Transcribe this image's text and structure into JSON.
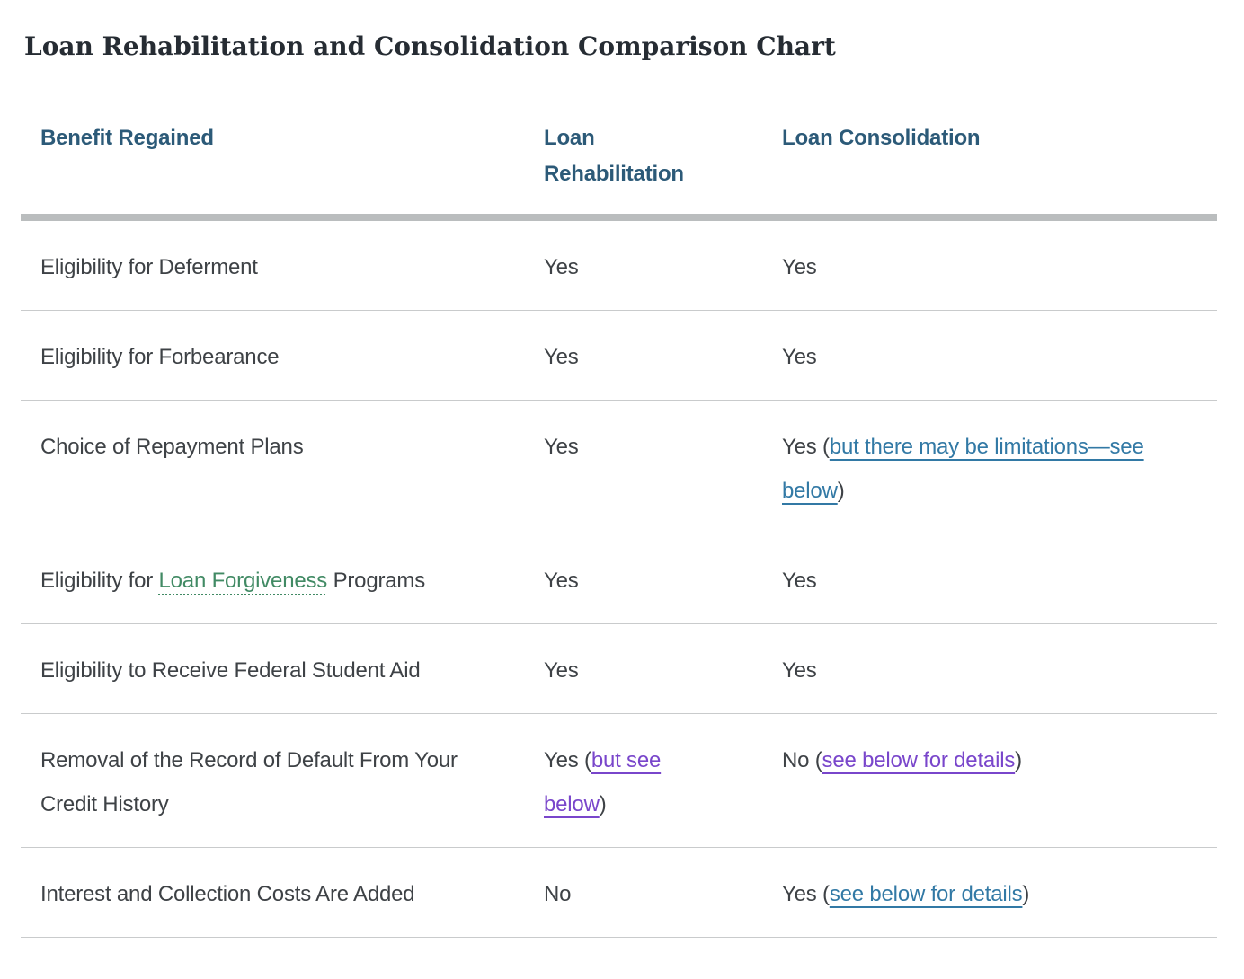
{
  "page": {
    "title": "Loan Rehabilitation and Consolidation Comparison Chart"
  },
  "colors": {
    "title": "#262c33",
    "header": "#2c5a78",
    "body": "#3e4246",
    "link": "#3279a5",
    "visited": "#7946cb",
    "term": "#418a64",
    "bar": "#babdbe",
    "rule": "#c9cbcc"
  },
  "table": {
    "headers": {
      "benefit": "Benefit Regained",
      "rehab": "Loan Rehabilitation",
      "consol": "Loan Consolidation"
    },
    "rows": [
      {
        "benefit": {
          "text": "Eligibility for Deferment"
        },
        "rehab": {
          "text": "Yes"
        },
        "consol": {
          "text": "Yes"
        }
      },
      {
        "benefit": {
          "text": "Eligibility for Forbearance"
        },
        "rehab": {
          "text": "Yes"
        },
        "consol": {
          "text": "Yes"
        }
      },
      {
        "benefit": {
          "text": "Choice of Repayment Plans"
        },
        "rehab": {
          "text": "Yes"
        },
        "consol": {
          "prefix": "Yes (",
          "link": "but there may be limitations—see below",
          "suffix": ")",
          "link_state": "unvisited"
        }
      },
      {
        "benefit": {
          "prefix": "Eligibility for ",
          "term": "Loan Forgiveness",
          "suffix": " Programs"
        },
        "rehab": {
          "text": "Yes"
        },
        "consol": {
          "text": "Yes"
        }
      },
      {
        "benefit": {
          "text": "Eligibility to Receive Federal Student Aid"
        },
        "rehab": {
          "text": "Yes"
        },
        "consol": {
          "text": "Yes"
        }
      },
      {
        "benefit": {
          "text": "Removal of the Record of Default From Your Credit History"
        },
        "rehab": {
          "prefix": "Yes (",
          "link": "but see below",
          "suffix": ")",
          "link_state": "visited"
        },
        "consol": {
          "prefix": "No (",
          "link": "see below for details",
          "suffix": ")",
          "link_state": "visited"
        }
      },
      {
        "benefit": {
          "text": "Interest and Collection Costs Are Added"
        },
        "rehab": {
          "text": "No"
        },
        "consol": {
          "prefix": "Yes (",
          "link": "see below for details",
          "suffix": ")",
          "link_state": "unvisited"
        }
      }
    ]
  }
}
